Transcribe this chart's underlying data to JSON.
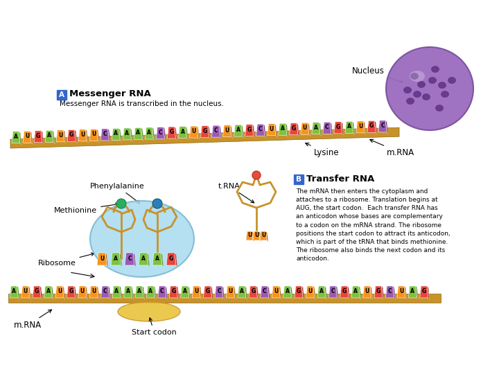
{
  "title_a": "Messenger RNA",
  "subtitle_a": "Messenger RNA is transcribed in the nucleus.",
  "title_b": "Transfer RNA",
  "body_b": "The mRNA then enters the cytoplasm and\nattaches to a ribosome. Translation begins at\nAUG, the start codon.  Each transfer RNA has\nan anticodon whose bases are complementary\nto a codon on the mRNA strand. The ribosome\npositions the start codon to attract its anticodon,\nwhich is part of the tRNA that binds methionine.\nThe ribosome also binds the next codon and its\nanticodon.",
  "nucleus_label": "Nucleus",
  "label_phenylalanine": "Phenylalanine",
  "label_trna": "t.RNA",
  "label_lysine": "Lysine",
  "label_mrna_top": "m.RNA",
  "label_methionine": "Methionine",
  "label_ribosome": "Ribosome",
  "label_mrna_bot": "m.RNA",
  "label_start_codon": "Start codon",
  "bases_top": [
    "A",
    "U",
    "G",
    "U",
    "U",
    "C",
    "A",
    "A",
    "A"
  ],
  "bases_bot": [
    "A",
    "U",
    "G",
    "U",
    "U",
    "C",
    "A",
    "A",
    "A"
  ],
  "anticodons": [
    "U",
    "A",
    "C",
    "A",
    "A",
    "G"
  ],
  "colors_bases": {
    "A": "#7dc242",
    "U": "#f7941d",
    "G": "#e8453c",
    "C": "#9b59b6",
    "Y": "#f7dc6f",
    "P": "#ec407a"
  },
  "color_backbone": "#c8922a",
  "color_ribosome_fill": "#aadcf0",
  "color_nucleus": "#9b6bbf",
  "color_trna_body": "#c8922a",
  "bg_color": "#ffffff"
}
